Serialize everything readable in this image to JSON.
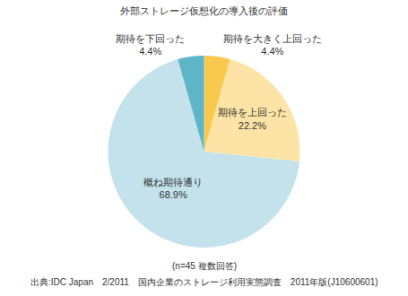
{
  "chart_data": {
    "type": "pie",
    "title": "外部ストレージ仮想化の導入後の評価",
    "categories": [
      "期待を大きく上回った",
      "期待を上回った",
      "概ね期待通り",
      "期待を下回った"
    ],
    "values": [
      4.4,
      22.2,
      68.9,
      4.4
    ],
    "value_labels": [
      "4.4%",
      "22.2%",
      "68.9%",
      "4.4%"
    ],
    "colors": [
      "#f9c94e",
      "#fde4a6",
      "#c3e2ec",
      "#5fb6c8"
    ],
    "data_labels": true,
    "annotations": [
      "(n=45 複数回答)",
      "出典:IDC Japan　2/2011　国内企業のストレージ利用実態調査　2011年版(J10600601)"
    ]
  }
}
